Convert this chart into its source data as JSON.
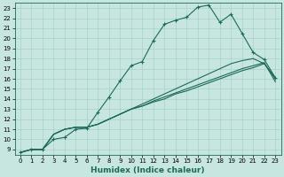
{
  "xlabel": "Humidex (Indice chaleur)",
  "xlim": [
    -0.5,
    23.5
  ],
  "ylim": [
    8.5,
    23.5
  ],
  "xticks": [
    0,
    1,
    2,
    3,
    4,
    5,
    6,
    7,
    8,
    9,
    10,
    11,
    12,
    13,
    14,
    15,
    16,
    17,
    18,
    19,
    20,
    21,
    22,
    23
  ],
  "yticks": [
    9,
    10,
    11,
    12,
    13,
    14,
    15,
    16,
    17,
    18,
    19,
    20,
    21,
    22,
    23
  ],
  "background_color": "#c8e6e0",
  "line_color": "#1a6b5a",
  "grid_color": "#9ecec4",
  "lines": [
    {
      "x": [
        0,
        1,
        2,
        3,
        4,
        5,
        6,
        7,
        8,
        9,
        10,
        11,
        12,
        13,
        14,
        15,
        16,
        17,
        18,
        19,
        20,
        21,
        22,
        23
      ],
      "y": [
        8.7,
        9.0,
        9.0,
        10.0,
        10.2,
        11.0,
        11.1,
        12.7,
        14.2,
        15.8,
        17.3,
        17.7,
        19.8,
        21.4,
        21.8,
        22.1,
        23.1,
        23.3,
        21.6,
        22.4,
        20.5,
        18.6,
        17.9,
        16.1
      ],
      "marker": "+",
      "ms": 3.0,
      "lw": 0.8
    },
    {
      "x": [
        0,
        1,
        2,
        3,
        4,
        5,
        6,
        7,
        8,
        9,
        10,
        11,
        12,
        13,
        14,
        15,
        16,
        17,
        18,
        19,
        20,
        21,
        22,
        23
      ],
      "y": [
        8.7,
        9.0,
        9.0,
        10.5,
        11.0,
        11.2,
        11.2,
        11.5,
        12.0,
        12.5,
        13.0,
        13.5,
        14.0,
        14.5,
        15.0,
        15.5,
        16.0,
        16.5,
        17.0,
        17.5,
        17.8,
        18.0,
        17.5,
        16.1
      ],
      "marker": null,
      "ms": 0,
      "lw": 0.8
    },
    {
      "x": [
        0,
        1,
        2,
        3,
        4,
        5,
        6,
        7,
        8,
        9,
        10,
        11,
        12,
        13,
        14,
        15,
        16,
        17,
        18,
        19,
        20,
        21,
        22,
        23
      ],
      "y": [
        8.7,
        9.0,
        9.0,
        10.5,
        11.0,
        11.2,
        11.2,
        11.5,
        12.0,
        12.5,
        13.0,
        13.3,
        13.8,
        14.2,
        14.6,
        15.0,
        15.4,
        15.8,
        16.2,
        16.6,
        17.0,
        17.3,
        17.6,
        15.7
      ],
      "marker": null,
      "ms": 0,
      "lw": 0.8
    },
    {
      "x": [
        0,
        1,
        2,
        3,
        4,
        5,
        6,
        7,
        8,
        9,
        10,
        11,
        12,
        13,
        14,
        15,
        16,
        17,
        18,
        19,
        20,
        21,
        22,
        23
      ],
      "y": [
        8.7,
        9.0,
        9.0,
        10.5,
        11.0,
        11.2,
        11.2,
        11.5,
        12.0,
        12.5,
        13.0,
        13.3,
        13.7,
        14.0,
        14.5,
        14.8,
        15.2,
        15.6,
        16.0,
        16.4,
        16.8,
        17.1,
        17.5,
        16.0
      ],
      "marker": null,
      "ms": 0,
      "lw": 0.8
    }
  ],
  "font_size": 6.5,
  "tick_font_size": 5.0,
  "xlabel_fontsize": 6.5
}
